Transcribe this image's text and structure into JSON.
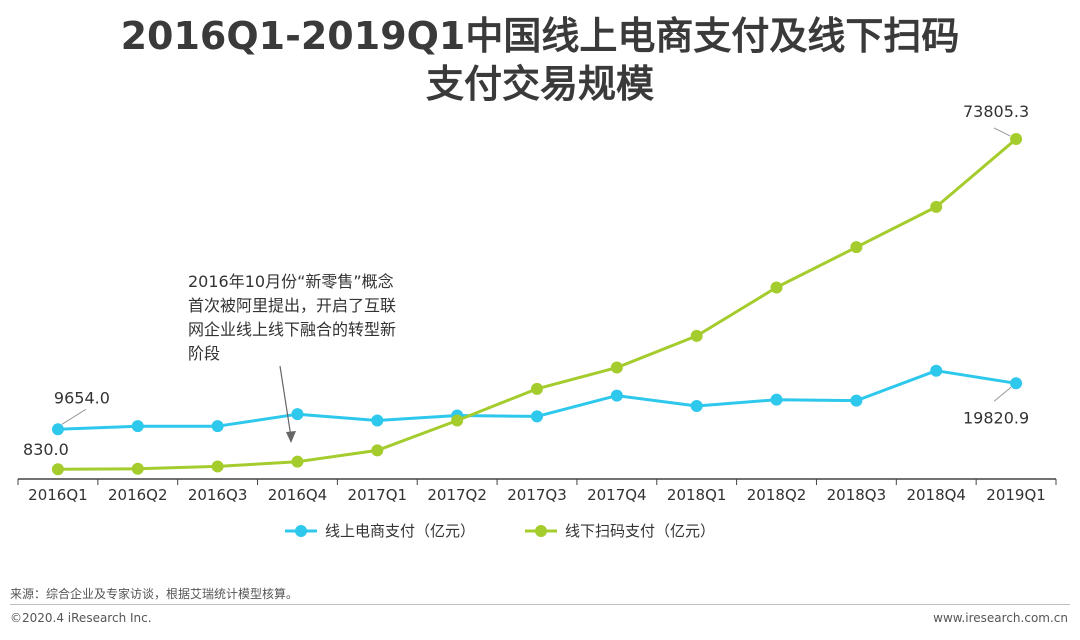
{
  "header": {
    "title_line1": "2016Q1-2019Q1中国线上电商支付及线下扫码",
    "title_line2": "支付交易规模"
  },
  "chart_data": {
    "type": "line",
    "categories": [
      "2016Q1",
      "2016Q2",
      "2016Q3",
      "2016Q4",
      "2017Q1",
      "2017Q2",
      "2017Q3",
      "2017Q4",
      "2018Q1",
      "2018Q2",
      "2018Q3",
      "2018Q4",
      "2019Q1"
    ],
    "ylim": [
      0,
      78000
    ],
    "series": [
      {
        "name": "线上电商支付（亿元）",
        "color": "#2ec8ec",
        "values": [
          9654.0,
          10350,
          10350,
          13000,
          11600,
          12700,
          12500,
          17100,
          14800,
          16200,
          16000,
          22600,
          19820.9
        ]
      },
      {
        "name": "线下扫码支付（亿元）",
        "color": "#a5cc2d",
        "values": [
          830.0,
          930,
          1450,
          2500,
          5000,
          11600,
          18600,
          23300,
          30300,
          41000,
          49900,
          58800,
          73805.3
        ]
      }
    ],
    "data_labels": [
      {
        "series": 0,
        "index": 0,
        "text": "9654.0"
      },
      {
        "series": 1,
        "index": 0,
        "text": "830.0"
      },
      {
        "series": 1,
        "index": 12,
        "text": "73805.3"
      },
      {
        "series": 0,
        "index": 12,
        "text": "19820.9"
      }
    ],
    "annotation": {
      "lines": [
        "2016年10月份“新零售”概念",
        "首次被阿里提出，开启了互联",
        "网企业线上线下融合的转型新",
        "阶段"
      ]
    }
  },
  "footer": {
    "source": "来源：综合企业及专家访谈，根据艾瑞统计模型核算。",
    "copyright": "©2020.4 iResearch Inc.",
    "website": "www.iresearch.com.cn"
  }
}
